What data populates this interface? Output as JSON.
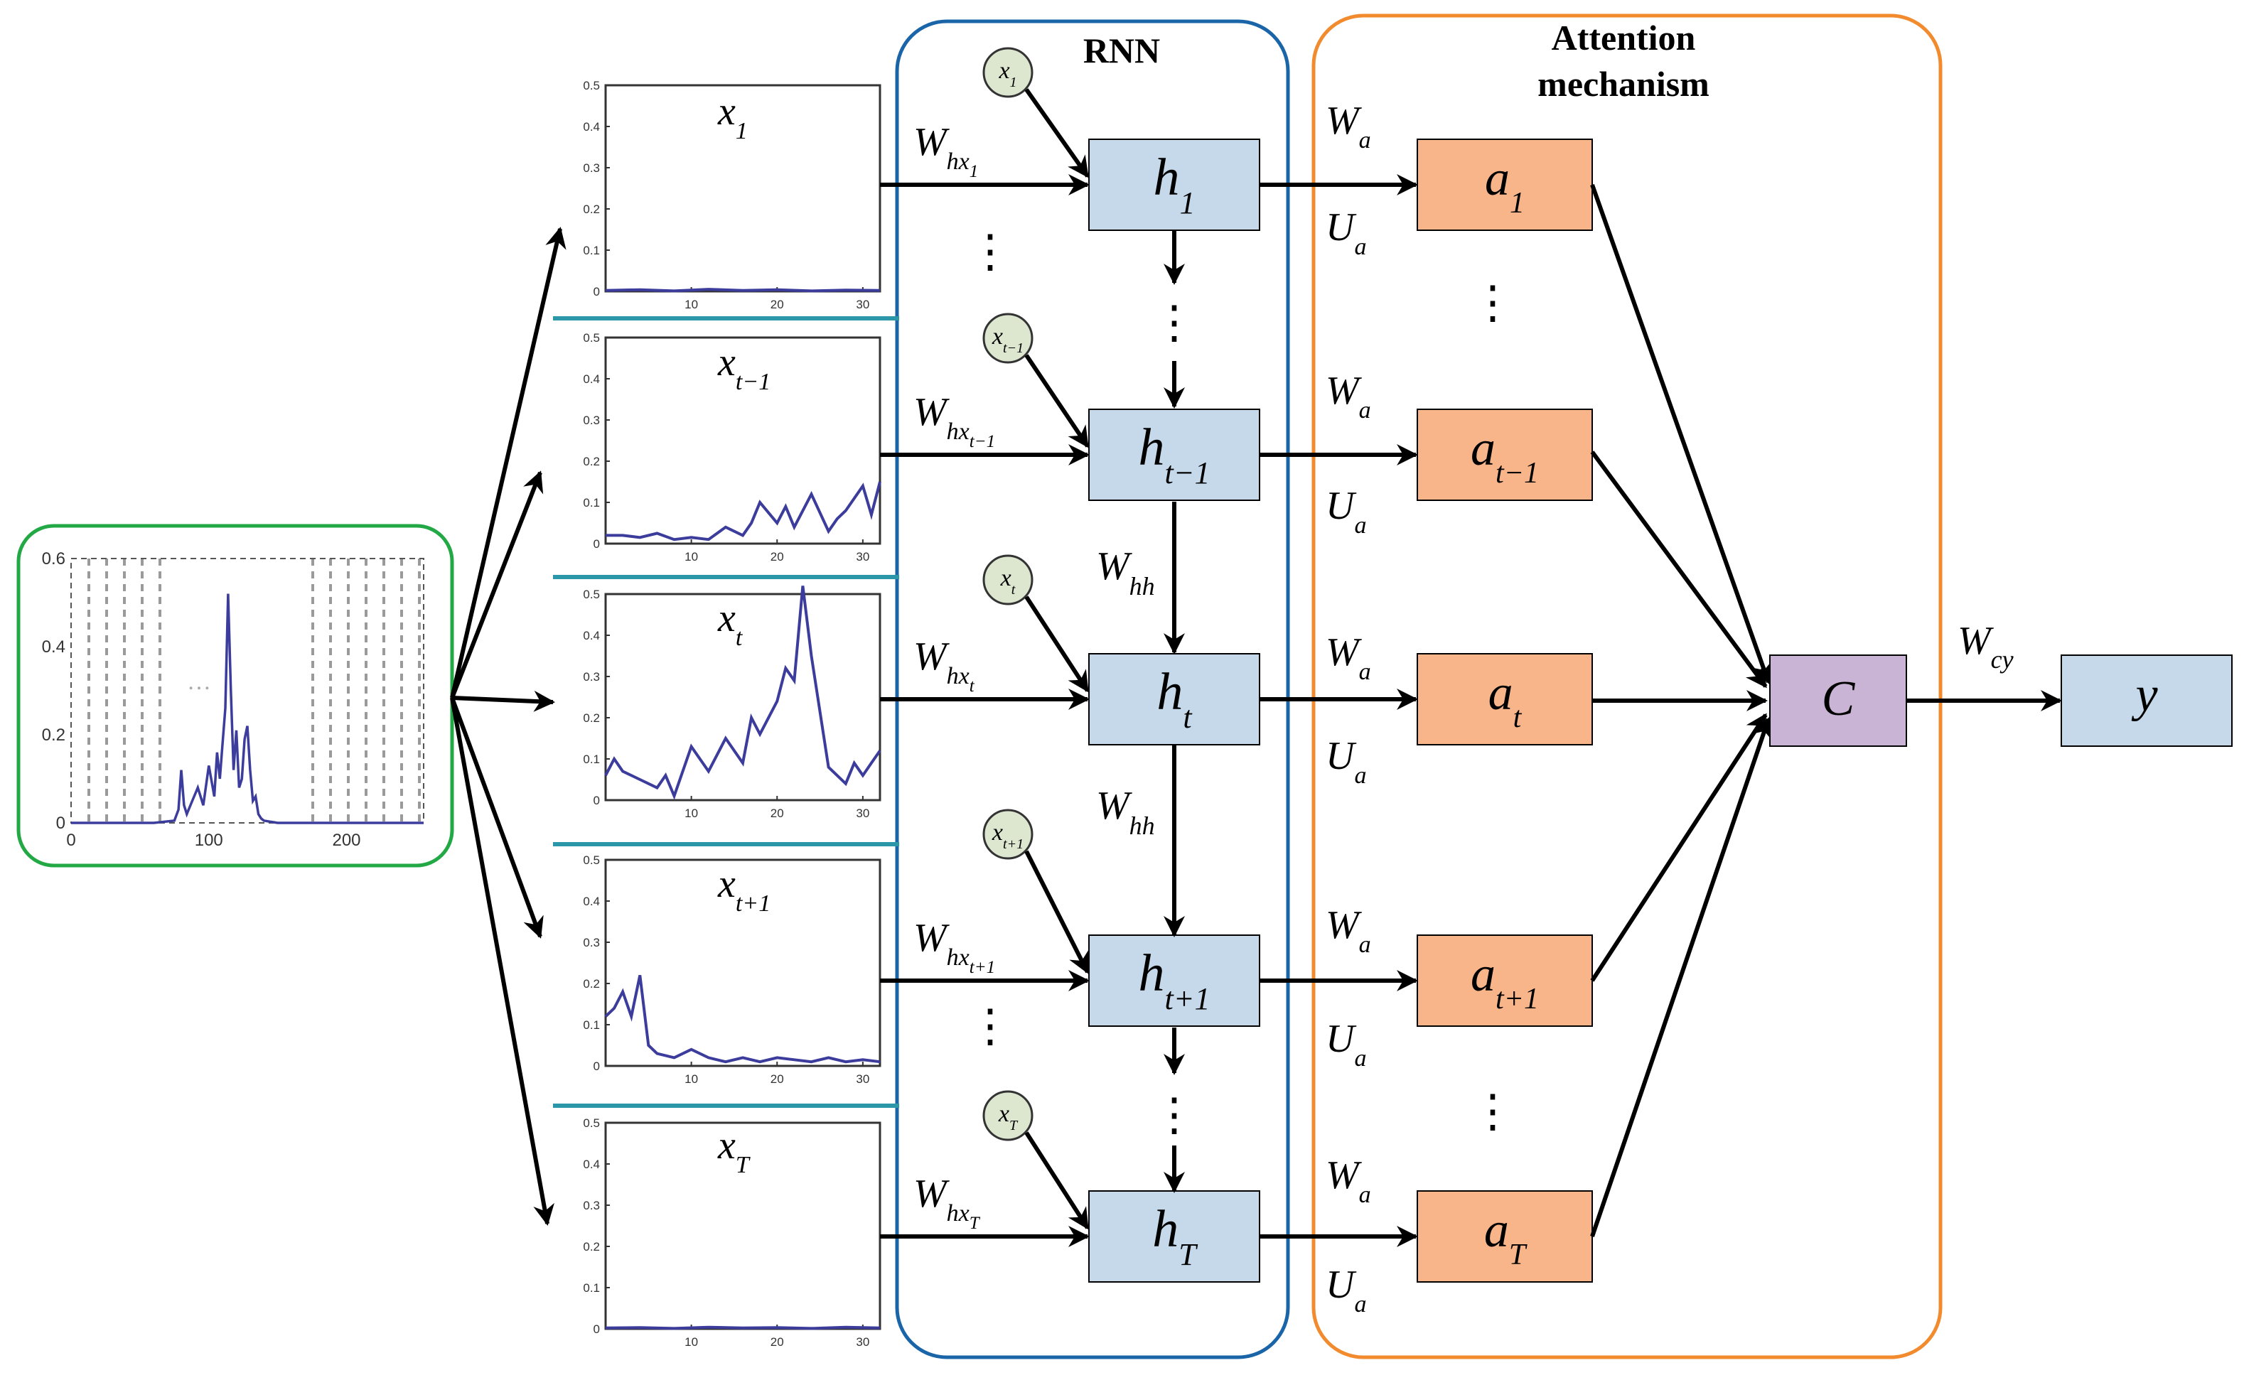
{
  "titles": {
    "rnn": "RNN",
    "attention_line1": "Attention",
    "attention_line2": "mechanism"
  },
  "colors": {
    "green_box": "#22a844",
    "rnn_box": "#1a64a8",
    "attn_box": "#f28a2e",
    "h_fill": "#c5d9ea",
    "a_fill": "#f9b58a",
    "c_fill": "#cab4d5",
    "input_circle_fill": "#dde6cf",
    "separator": "#2d97aa",
    "plot_line": "#3c3c9c"
  },
  "glyphs": {
    "ellipsis_v": "⋮",
    "main_plot_dots": "…"
  },
  "chart_data": [
    {
      "type": "line",
      "name": "full-input-series",
      "xlim": [
        0,
        256
      ],
      "ylim": [
        0,
        0.6
      ],
      "xticks": [
        "0",
        "100",
        "200"
      ],
      "yticks": [
        "0",
        "0.2",
        "0.4",
        "0.6"
      ],
      "x": [
        0,
        30,
        60,
        75,
        78,
        80,
        82,
        84,
        88,
        92,
        96,
        100,
        104,
        106,
        108,
        110,
        112,
        114,
        116,
        118,
        120,
        122,
        124,
        126,
        128,
        130,
        132,
        134,
        136,
        138,
        140,
        150,
        160,
        200,
        256
      ],
      "values": [
        0,
        0,
        0,
        0.005,
        0.03,
        0.12,
        0.04,
        0.02,
        0.05,
        0.08,
        0.04,
        0.13,
        0.06,
        0.16,
        0.1,
        0.18,
        0.26,
        0.52,
        0.3,
        0.12,
        0.21,
        0.08,
        0.1,
        0.19,
        0.22,
        0.12,
        0.05,
        0.06,
        0.02,
        0.01,
        0.005,
        0,
        0,
        0,
        0
      ]
    },
    {
      "type": "line",
      "name": "x_1",
      "xlim": [
        0,
        32
      ],
      "ylim": [
        0,
        0.5
      ],
      "xticks": [
        "10",
        "20",
        "30"
      ],
      "yticks": [
        "0",
        "0.1",
        "0.2",
        "0.3",
        "0.4",
        "0.5"
      ],
      "x": [
        0,
        4,
        8,
        12,
        16,
        20,
        24,
        28,
        32
      ],
      "values": [
        0.002,
        0.004,
        0.001,
        0.005,
        0.002,
        0.004,
        0.001,
        0.003,
        0.002
      ]
    },
    {
      "type": "line",
      "name": "x_t-1",
      "xlim": [
        0,
        32
      ],
      "ylim": [
        0,
        0.5
      ],
      "xticks": [
        "10",
        "20",
        "30"
      ],
      "yticks": [
        "0",
        "0.1",
        "0.2",
        "0.3",
        "0.4",
        "0.5"
      ],
      "x": [
        0,
        2,
        4,
        6,
        8,
        10,
        12,
        14,
        16,
        17,
        18,
        20,
        21,
        22,
        24,
        26,
        27,
        28,
        30,
        31,
        32
      ],
      "values": [
        0.02,
        0.02,
        0.015,
        0.025,
        0.01,
        0.015,
        0.01,
        0.04,
        0.02,
        0.05,
        0.1,
        0.05,
        0.09,
        0.04,
        0.12,
        0.03,
        0.06,
        0.08,
        0.14,
        0.07,
        0.15
      ]
    },
    {
      "type": "line",
      "name": "x_t",
      "xlim": [
        0,
        32
      ],
      "ylim": [
        0,
        0.5
      ],
      "xticks": [
        "10",
        "20",
        "30"
      ],
      "yticks": [
        "0",
        "0.1",
        "0.2",
        "0.3",
        "0.4",
        "0.5"
      ],
      "x": [
        0,
        1,
        2,
        4,
        6,
        7,
        8,
        10,
        12,
        14,
        16,
        17,
        18,
        20,
        21,
        22,
        23,
        24,
        26,
        27,
        28,
        29,
        30,
        31,
        32
      ],
      "values": [
        0.06,
        0.1,
        0.07,
        0.05,
        0.03,
        0.06,
        0.01,
        0.13,
        0.07,
        0.15,
        0.09,
        0.2,
        0.16,
        0.24,
        0.32,
        0.29,
        0.52,
        0.35,
        0.08,
        0.06,
        0.04,
        0.09,
        0.06,
        0.09,
        0.12
      ]
    },
    {
      "type": "line",
      "name": "x_t+1",
      "xlim": [
        0,
        32
      ],
      "ylim": [
        0,
        0.5
      ],
      "xticks": [
        "10",
        "20",
        "30"
      ],
      "yticks": [
        "0",
        "0.1",
        "0.2",
        "0.3",
        "0.4",
        "0.5"
      ],
      "x": [
        0,
        1,
        2,
        3,
        4,
        5,
        6,
        8,
        10,
        12,
        14,
        16,
        18,
        20,
        22,
        24,
        26,
        28,
        30,
        32
      ],
      "values": [
        0.12,
        0.14,
        0.18,
        0.12,
        0.22,
        0.05,
        0.03,
        0.02,
        0.04,
        0.02,
        0.01,
        0.02,
        0.01,
        0.02,
        0.015,
        0.01,
        0.02,
        0.01,
        0.015,
        0.01
      ]
    },
    {
      "type": "line",
      "name": "x_T",
      "xlim": [
        0,
        32
      ],
      "ylim": [
        0,
        0.5
      ],
      "xticks": [
        "10",
        "20",
        "30"
      ],
      "yticks": [
        "0",
        "0.1",
        "0.2",
        "0.3",
        "0.4",
        "0.5"
      ],
      "x": [
        0,
        4,
        8,
        12,
        16,
        20,
        24,
        28,
        32
      ],
      "values": [
        0.002,
        0.003,
        0.001,
        0.004,
        0.002,
        0.003,
        0.001,
        0.004,
        0.002
      ]
    }
  ],
  "rows": [
    {
      "plot_var": "x",
      "plot_sub": "1",
      "circle_var": "x",
      "circle_sub": "1",
      "weight_var": "W",
      "weight_sub": "hx",
      "weight_subsub": "1",
      "h_var": "h",
      "h_sub": "1",
      "wa_var": "W",
      "wa_sub": "a",
      "ua_var": "U",
      "ua_sub": "a",
      "a_var": "a",
      "a_sub": "1"
    },
    {
      "plot_var": "x",
      "plot_sub": "t−1",
      "circle_var": "x",
      "circle_sub": "t−1",
      "weight_var": "W",
      "weight_sub": "hx",
      "weight_subsub": "t−1",
      "h_var": "h",
      "h_sub": "t−1",
      "wa_var": "W",
      "wa_sub": "a",
      "ua_var": "U",
      "ua_sub": "a",
      "a_var": "a",
      "a_sub": "t−1"
    },
    {
      "plot_var": "x",
      "plot_sub": "t",
      "circle_var": "x",
      "circle_sub": "t",
      "weight_var": "W",
      "weight_sub": "hx",
      "weight_subsub": "t",
      "h_var": "h",
      "h_sub": "t",
      "wa_var": "W",
      "wa_sub": "a",
      "ua_var": "U",
      "ua_sub": "a",
      "a_var": "a",
      "a_sub": "t"
    },
    {
      "plot_var": "x",
      "plot_sub": "t+1",
      "circle_var": "x",
      "circle_sub": "t+1",
      "weight_var": "W",
      "weight_sub": "hx",
      "weight_subsub": "t+1",
      "h_var": "h",
      "h_sub": "t+1",
      "wa_var": "W",
      "wa_sub": "a",
      "ua_var": "U",
      "ua_sub": "a",
      "a_var": "a",
      "a_sub": "t+1"
    },
    {
      "plot_var": "x",
      "plot_sub": "T",
      "circle_var": "x",
      "circle_sub": "T",
      "weight_var": "W",
      "weight_sub": "hx",
      "weight_subsub": "T",
      "h_var": "h",
      "h_sub": "T",
      "wa_var": "W",
      "wa_sub": "a",
      "ua_var": "U",
      "ua_sub": "a",
      "a_var": "a",
      "a_sub": "T"
    }
  ],
  "recurrent_weights": [
    {
      "var": "W",
      "sub": "hh"
    },
    {
      "var": "W",
      "sub": "hh"
    }
  ],
  "context": {
    "var": "C"
  },
  "output_weight": {
    "var": "W",
    "sub": "cy"
  },
  "output": {
    "var": "y"
  }
}
